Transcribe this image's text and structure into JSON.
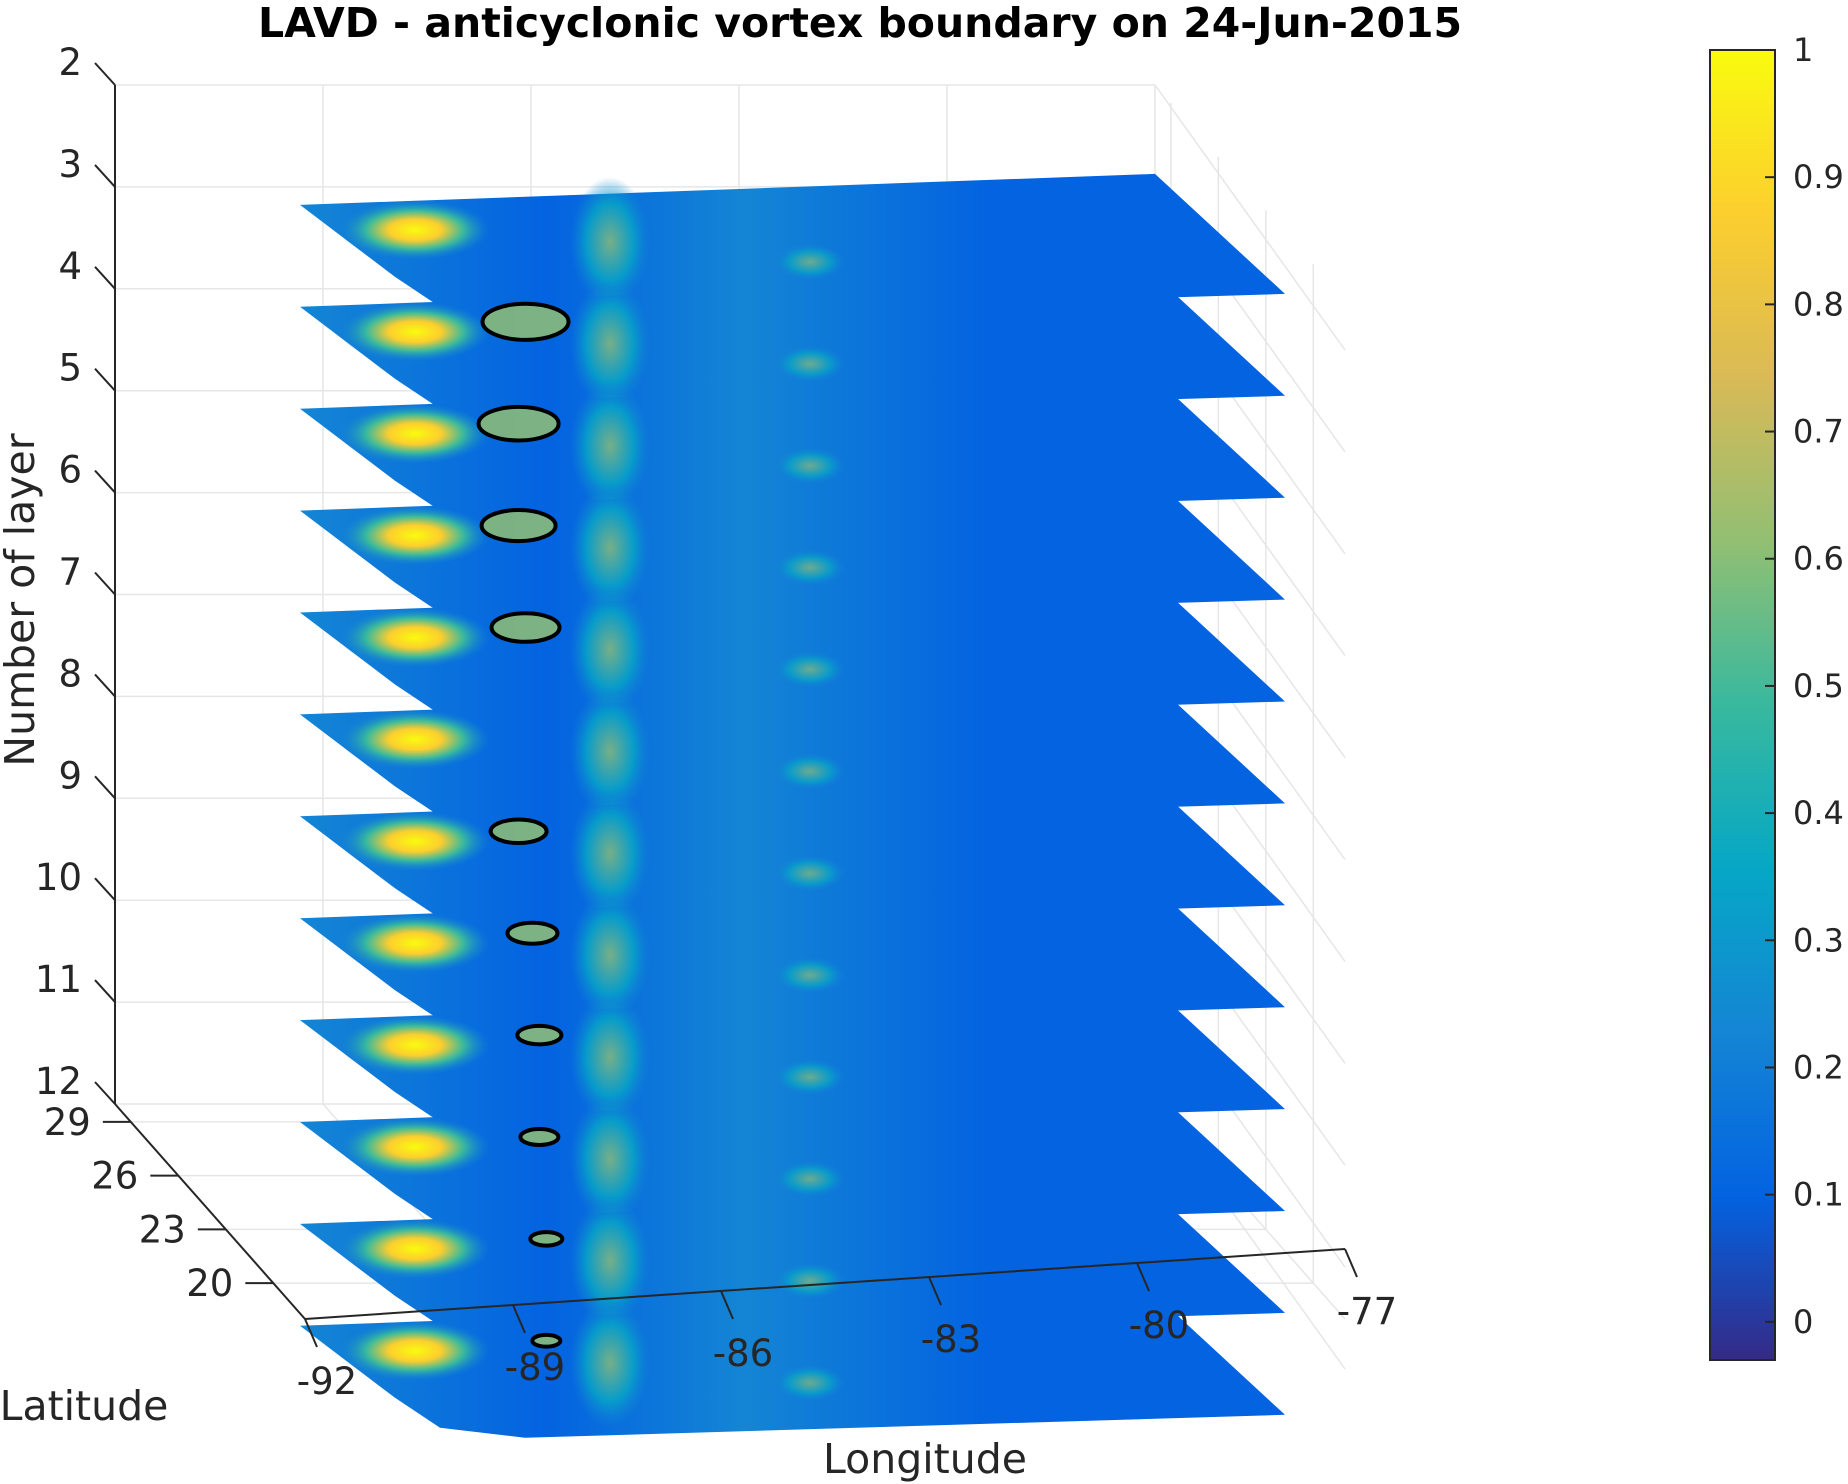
{
  "chart_data": {
    "type": "heatmap",
    "title": "LAVD - anticyclonic vortex boundary on 24-Jun-2015",
    "xlabel": "Longitude",
    "ylabel": "Latitude",
    "zlabel": "Number of layer",
    "x_ticks": [
      "-92",
      "-89",
      "-86",
      "-83",
      "-80",
      "-77"
    ],
    "x_tick_values": [
      -92,
      -89,
      -86,
      -83,
      -80,
      -77
    ],
    "xlim": [
      -92,
      -77
    ],
    "y_ticks": [
      "20",
      "23",
      "26",
      "29"
    ],
    "y_tick_values": [
      20,
      23,
      26,
      29
    ],
    "ylim": [
      18,
      30
    ],
    "z_ticks": [
      "2",
      "3",
      "4",
      "5",
      "6",
      "7",
      "8",
      "9",
      "10",
      "11",
      "12"
    ],
    "z_tick_values": [
      2,
      3,
      4,
      5,
      6,
      7,
      8,
      9,
      10,
      11,
      12
    ],
    "zlim": [
      2,
      12
    ],
    "z_direction": "reverse",
    "grid": true,
    "colormap": "parula",
    "colorbar": {
      "ticks": [
        "0",
        "0.1",
        "0.2",
        "0.3",
        "0.4",
        "0.5",
        "0.6",
        "0.7",
        "0.8",
        "0.9",
        "1"
      ],
      "tick_values": [
        0,
        0.1,
        0.2,
        0.3,
        0.4,
        0.5,
        0.6,
        0.7,
        0.8,
        0.9,
        1
      ],
      "range": [
        -0.03,
        1
      ],
      "placement": "right"
    },
    "layers": [
      {
        "layer": 3,
        "vortex_boundary": false
      },
      {
        "layer": 4,
        "vortex_boundary": true,
        "vortex_center": [
          -86.8,
          24.2
        ]
      },
      {
        "layer": 5,
        "vortex_boundary": true,
        "vortex_center": [
          -86.9,
          24.0
        ]
      },
      {
        "layer": 6,
        "vortex_boundary": true,
        "vortex_center": [
          -86.9,
          23.8
        ]
      },
      {
        "layer": 7,
        "vortex_boundary": true,
        "vortex_center": [
          -86.8,
          23.6
        ]
      },
      {
        "layer": 8,
        "vortex_boundary": false
      },
      {
        "layer": 9,
        "vortex_boundary": true,
        "vortex_center": [
          -86.9,
          23.8
        ]
      },
      {
        "layer": 10,
        "vortex_boundary": true,
        "vortex_center": [
          -86.7,
          23.9
        ]
      },
      {
        "layer": 11,
        "vortex_boundary": true,
        "vortex_center": [
          -86.6,
          23.8
        ]
      },
      {
        "layer": 12,
        "vortex_boundary": true,
        "vortex_center": [
          -86.6,
          23.5
        ]
      },
      {
        "layer": 13,
        "vortex_boundary": true,
        "vortex_center": [
          -86.5,
          24.0
        ]
      },
      {
        "layer": 14,
        "vortex_boundary": true,
        "vortex_center": [
          -86.5,
          21.8
        ]
      }
    ],
    "colors": {
      "parula": [
        "#352a87",
        "#0363e1",
        "#1485d4",
        "#06a7c6",
        "#38b99e",
        "#92bf73",
        "#d9ba56",
        "#fcce2e",
        "#f9fb0e"
      ],
      "outline": "#000000",
      "axis": "#262626",
      "grid": "#e6e6e6"
    }
  }
}
